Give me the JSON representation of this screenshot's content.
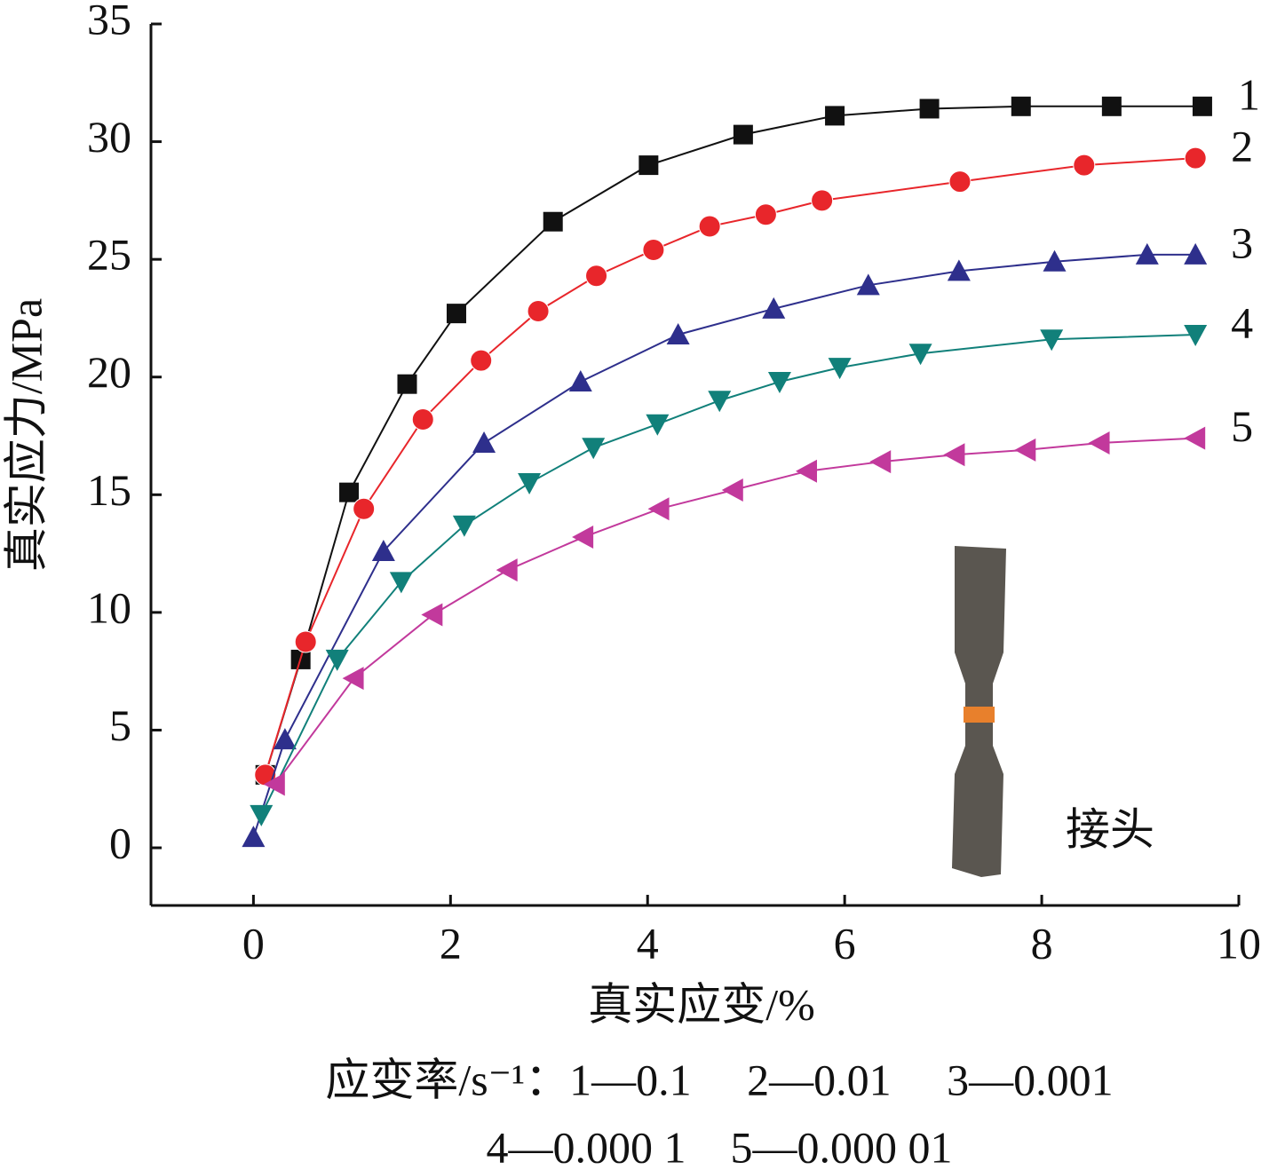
{
  "chart_data": {
    "type": "line",
    "x_label": "真实应变/%",
    "y_label": "真实应力/MPa",
    "annotation": "接头",
    "legend_note": [
      "应变率/s⁻¹：1—0.1　 2—0.01　 3—0.001",
      "4—0.000 1　5—0.000 01"
    ],
    "xlim": [
      -1.04,
      10
    ],
    "ylim": [
      -2.45,
      35
    ],
    "xticks": [
      0,
      2,
      4,
      6,
      8,
      10
    ],
    "yticks": [
      0,
      5,
      10,
      15,
      20,
      25,
      30,
      35
    ],
    "series": [
      {
        "name": "1",
        "color": "#111111",
        "marker": "square",
        "x": [
          0.12,
          0.48,
          0.97,
          1.56,
          2.06,
          3.04,
          4.01,
          4.97,
          5.9,
          6.86,
          7.79,
          8.71,
          9.63
        ],
        "values": [
          3.1,
          8.0,
          15.1,
          19.7,
          22.7,
          26.6,
          29.0,
          30.3,
          31.1,
          31.4,
          31.5,
          31.5,
          31.5
        ]
      },
      {
        "name": "2",
        "color": "#e8262b",
        "marker": "circle",
        "x": [
          0.12,
          0.53,
          1.12,
          1.72,
          2.31,
          2.89,
          3.48,
          4.06,
          4.63,
          5.2,
          5.77,
          7.17,
          8.43,
          9.56
        ],
        "values": [
          3.1,
          8.75,
          14.4,
          18.2,
          20.7,
          22.8,
          24.3,
          25.4,
          26.4,
          26.9,
          27.5,
          28.3,
          29.0,
          29.3
        ]
      },
      {
        "name": "3",
        "color": "#2e2f8c",
        "marker": "triangle-up",
        "x": [
          0,
          0.32,
          1.32,
          2.34,
          3.32,
          4.31,
          5.28,
          6.24,
          7.16,
          8.13,
          9.07,
          9.56
        ],
        "values": [
          0.45,
          4.6,
          12.6,
          17.2,
          19.8,
          21.8,
          22.9,
          23.9,
          24.5,
          24.9,
          25.2,
          25.2
        ]
      },
      {
        "name": "4",
        "color": "#11807a",
        "marker": "triangle-down",
        "x": [
          0.08,
          0.85,
          1.5,
          2.14,
          2.8,
          3.45,
          4.1,
          4.73,
          5.34,
          5.95,
          6.77,
          8.1,
          9.56
        ],
        "values": [
          1.4,
          8.0,
          11.3,
          13.7,
          15.5,
          17.0,
          18.0,
          19.0,
          19.8,
          20.4,
          21.0,
          21.6,
          21.8
        ]
      },
      {
        "name": "5",
        "color": "#c2399c",
        "marker": "triangle-left",
        "x": [
          0.22,
          1.02,
          1.82,
          2.58,
          3.35,
          4.12,
          4.87,
          5.62,
          6.37,
          7.12,
          7.84,
          8.59,
          9.56
        ],
        "values": [
          2.7,
          7.2,
          9.9,
          11.8,
          13.2,
          14.4,
          15.2,
          16.0,
          16.4,
          16.7,
          16.9,
          17.2,
          17.4
        ]
      }
    ]
  }
}
